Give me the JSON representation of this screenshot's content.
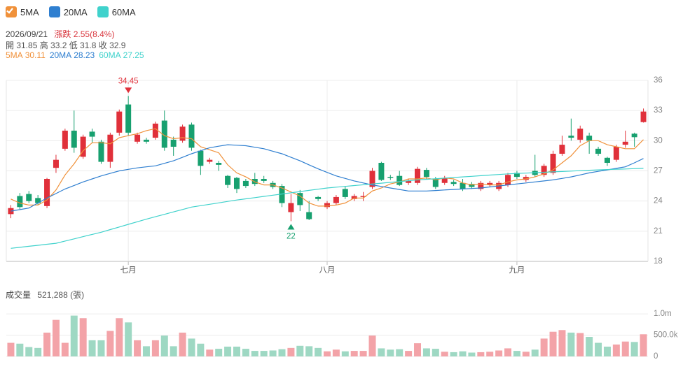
{
  "info": {
    "date": "2026/09/21",
    "change": "漲跌 2.55(8.4%)",
    "ohlc": "開 31.85 高 33.2 低 31.8 收 32.9"
  },
  "chart_data": [
    {
      "type": "candlestick",
      "categories": [
        null,
        null,
        null,
        null,
        null,
        null,
        null,
        null,
        null,
        null,
        null,
        null,
        null,
        "七月",
        null,
        null,
        null,
        null,
        null,
        null,
        null,
        null,
        null,
        null,
        null,
        null,
        null,
        null,
        null,
        null,
        null,
        null,
        null,
        null,
        null,
        "八月",
        null,
        null,
        null,
        null,
        null,
        null,
        null,
        null,
        null,
        null,
        null,
        null,
        null,
        null,
        null,
        null,
        null,
        null,
        null,
        null,
        "九月",
        null,
        null,
        null,
        null,
        null,
        null,
        null,
        null,
        null,
        null,
        null,
        null,
        null,
        null
      ],
      "open": [
        22.7,
        24.5,
        24.7,
        24.3,
        23.5,
        27.3,
        29.2,
        31.0,
        28.4,
        30.9,
        29.9,
        27.9,
        30.8,
        33.6,
        29.9,
        30.1,
        30.3,
        32.0,
        30.1,
        30.0,
        31.6,
        29.0,
        27.9,
        27.8,
        26.5,
        26.3,
        26.0,
        26.2,
        26.2,
        25.8,
        25.5,
        22.9,
        24.8,
        22.9,
        24.4,
        23.4,
        23.8,
        25.2,
        24.2,
        24.4,
        25.4,
        27.8,
        26.4,
        26.5,
        25.8,
        25.8,
        27.1,
        26.2,
        25.8,
        25.9,
        25.8,
        25.7,
        25.2,
        25.6,
        25.2,
        25.6,
        26.8,
        26.1,
        27.0,
        26.6,
        26.8,
        28.7,
        30.5,
        30.1,
        30.5,
        29.2,
        28.3,
        28.1,
        29.6,
        30.7,
        31.85
      ],
      "high": [
        23.6,
        24.8,
        25.0,
        24.6,
        26.3,
        28.6,
        31.2,
        33.0,
        30.6,
        31.2,
        30.1,
        30.8,
        33.1,
        34.45,
        30.8,
        30.3,
        31.9,
        33.0,
        30.4,
        31.6,
        31.8,
        29.1,
        28.3,
        28.0,
        26.6,
        26.4,
        26.2,
        26.8,
        26.5,
        26.0,
        25.7,
        24.7,
        25.1,
        24.0,
        24.5,
        24.0,
        24.6,
        25.5,
        24.7,
        24.9,
        27.3,
        27.9,
        26.6,
        27.0,
        26.2,
        27.4,
        27.3,
        26.4,
        26.5,
        26.1,
        26.2,
        25.9,
        26.0,
        26.0,
        26.0,
        26.8,
        27.0,
        26.6,
        28.6,
        27.7,
        29.0,
        30.5,
        32.2,
        31.5,
        30.8,
        29.4,
        28.4,
        29.6,
        31.0,
        30.8,
        33.2
      ],
      "low": [
        22.3,
        23.2,
        23.8,
        23.6,
        23.3,
        26.8,
        29.0,
        28.8,
        28.2,
        29.8,
        27.7,
        27.3,
        30.5,
        30.5,
        29.7,
        29.7,
        30.1,
        29.0,
        28.5,
        29.8,
        29.0,
        26.6,
        27.7,
        27.0,
        25.3,
        24.8,
        25.3,
        25.5,
        25.8,
        25.2,
        23.4,
        22.0,
        23.0,
        22.1,
        24.0,
        23.2,
        23.6,
        24.2,
        24.0,
        24.0,
        25.2,
        26.0,
        26.1,
        25.5,
        25.6,
        25.6,
        26.2,
        25.2,
        25.6,
        25.5,
        25.0,
        25.2,
        25.0,
        25.4,
        25.0,
        25.4,
        26.2,
        25.9,
        26.4,
        26.4,
        26.6,
        28.5,
        30.0,
        29.8,
        28.7,
        28.5,
        27.5,
        27.9,
        29.3,
        29.4,
        31.8
      ],
      "close": [
        23.3,
        23.4,
        24.0,
        23.8,
        26.2,
        28.1,
        31.0,
        29.3,
        30.4,
        30.4,
        27.9,
        30.6,
        32.9,
        30.8,
        30.6,
        29.9,
        31.7,
        29.3,
        29.4,
        31.4,
        29.3,
        27.5,
        28.1,
        27.6,
        25.6,
        25.2,
        25.5,
        25.7,
        26.0,
        25.4,
        23.8,
        23.8,
        23.6,
        22.2,
        24.2,
        23.8,
        24.4,
        24.4,
        24.5,
        24.5,
        27.0,
        26.1,
        26.3,
        25.6,
        26.0,
        27.2,
        26.4,
        25.4,
        26.3,
        25.7,
        25.2,
        25.4,
        25.8,
        25.8,
        25.8,
        26.6,
        26.4,
        26.4,
        26.6,
        27.5,
        28.7,
        29.6,
        30.3,
        31.2,
        30.0,
        28.7,
        27.8,
        29.4,
        29.9,
        30.35,
        32.9
      ],
      "series": [
        {
          "name": "5MA",
          "color": "#f0913a",
          "last_label": "30.11",
          "values": [
            24.2,
            23.8,
            23.6,
            23.6,
            24.1,
            25.1,
            26.6,
            27.7,
            29.0,
            29.8,
            29.8,
            29.7,
            30.3,
            30.5,
            30.7,
            31.0,
            31.2,
            30.5,
            30.2,
            30.3,
            30.2,
            29.4,
            29.1,
            28.8,
            27.6,
            26.8,
            26.4,
            25.9,
            25.6,
            25.6,
            25.3,
            24.9,
            24.5,
            23.8,
            23.5,
            23.5,
            23.6,
            23.8,
            24.3,
            24.3,
            25.0,
            25.3,
            25.7,
            25.9,
            26.2,
            26.2,
            26.3,
            26.1,
            26.3,
            26.2,
            25.8,
            25.6,
            25.7,
            25.6,
            25.6,
            25.9,
            26.1,
            26.2,
            26.4,
            26.7,
            27.1,
            27.8,
            28.5,
            29.5,
            30.0,
            30.0,
            29.6,
            29.4,
            29.2,
            29.2,
            30.11
          ]
        },
        {
          "name": "20MA",
          "color": "#2f7fd0",
          "last_label": "28.23",
          "values": [
            23.0,
            23.15,
            23.3,
            23.8,
            24.3,
            24.75,
            25.2,
            25.55,
            25.9,
            26.2,
            26.5,
            26.75,
            27.0,
            27.15,
            27.3,
            27.4,
            27.5,
            27.75,
            28.0,
            28.35,
            28.7,
            29.0,
            29.3,
            29.45,
            29.6,
            29.55,
            29.5,
            29.35,
            29.2,
            28.95,
            28.7,
            28.35,
            28.0,
            27.6,
            27.2,
            26.85,
            26.5,
            26.25,
            26.0,
            25.8,
            25.6,
            25.45,
            25.3,
            25.15,
            25.0,
            25.0,
            25.0,
            25.05,
            25.1,
            25.15,
            25.2,
            25.25,
            25.3,
            25.4,
            25.5,
            25.6,
            25.7,
            25.8,
            25.9,
            26.0,
            26.1,
            26.25,
            26.4,
            26.6,
            26.8,
            26.95,
            27.1,
            27.25,
            27.4,
            27.8,
            28.23
          ]
        },
        {
          "name": "60MA",
          "color": "#40d2cc",
          "last_label": "27.25",
          "values": [
            19.3,
            19.4,
            19.5,
            19.6,
            19.7,
            19.8,
            20.02,
            20.24,
            20.46,
            20.68,
            20.9,
            21.16,
            21.42,
            21.68,
            21.94,
            22.2,
            22.44,
            22.68,
            22.92,
            23.16,
            23.4,
            23.54,
            23.68,
            23.82,
            23.96,
            24.1,
            24.22,
            24.34,
            24.46,
            24.58,
            24.7,
            24.82,
            24.94,
            25.06,
            25.18,
            25.3,
            25.38,
            25.46,
            25.54,
            25.62,
            25.7,
            25.78,
            25.86,
            25.94,
            26.02,
            26.1,
            26.16,
            26.22,
            26.28,
            26.34,
            26.4,
            26.46,
            26.52,
            26.58,
            26.64,
            26.7,
            26.74,
            26.78,
            26.82,
            26.86,
            26.9,
            26.94,
            26.98,
            27.02,
            27.06,
            27.1,
            27.13,
            27.16,
            27.19,
            27.22,
            27.25
          ]
        }
      ],
      "up_color": "#e0303a",
      "down_color": "#17a06f",
      "max_label": "34.45",
      "min_label": "22",
      "ylim": [
        18,
        36
      ],
      "yticks": [
        18,
        21,
        24,
        27,
        30,
        33,
        36
      ],
      "grid": true
    },
    {
      "type": "bar",
      "title": "成交量",
      "subtitle": "521,288 (張)",
      "values": [
        320000,
        300000,
        220000,
        200000,
        560000,
        860000,
        320000,
        960000,
        900000,
        380000,
        380000,
        600000,
        900000,
        800000,
        380000,
        240000,
        380000,
        490000,
        240000,
        560000,
        420000,
        300000,
        160000,
        180000,
        230000,
        230000,
        180000,
        130000,
        130000,
        140000,
        170000,
        200000,
        250000,
        240000,
        200000,
        120000,
        160000,
        120000,
        130000,
        130000,
        490000,
        190000,
        160000,
        170000,
        130000,
        310000,
        190000,
        180000,
        110000,
        100000,
        120000,
        90000,
        100000,
        110000,
        140000,
        190000,
        130000,
        110000,
        160000,
        420000,
        580000,
        620000,
        560000,
        550000,
        460000,
        320000,
        230000,
        280000,
        350000,
        340000,
        521288
      ],
      "up_color": "#f3a3a8",
      "down_color": "#9ed8c3",
      "ylim": [
        0,
        1200000
      ],
      "yticks": [
        0,
        {
          "value": 500000,
          "label": "500.0k"
        },
        {
          "value": 1000000,
          "label": "1.0m"
        }
      ],
      "grid": true
    }
  ]
}
